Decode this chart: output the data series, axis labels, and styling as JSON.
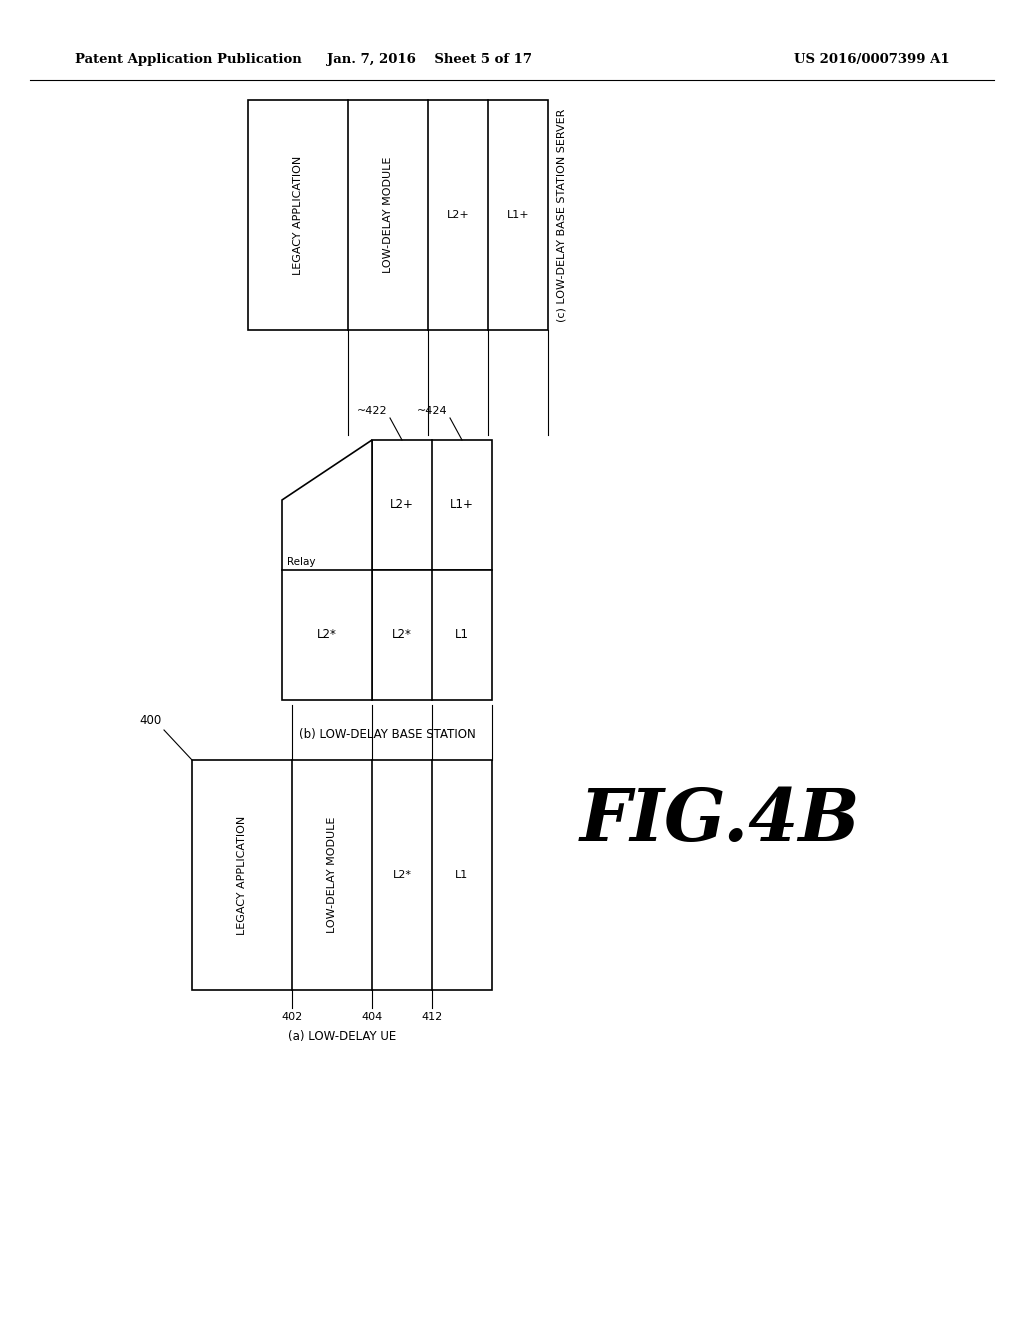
{
  "header_left": "Patent Application Publication",
  "header_mid": "Jan. 7, 2016    Sheet 5 of 17",
  "header_right": "US 2016/0007399 A1",
  "fig_label": "FIG.4B",
  "bg_color": "#ffffff",
  "server_label": "(c) LOW-DELAY BASE STATION SERVER",
  "bs_label": "(b) LOW-DELAY BASE STATION",
  "ue_label": "(a) LOW-DELAY UE",
  "ue_ref": "400",
  "bs_ref_422": "~422",
  "bs_ref_424": "~424",
  "ref_402": "402",
  "ref_404": "404",
  "ref_412": "412"
}
